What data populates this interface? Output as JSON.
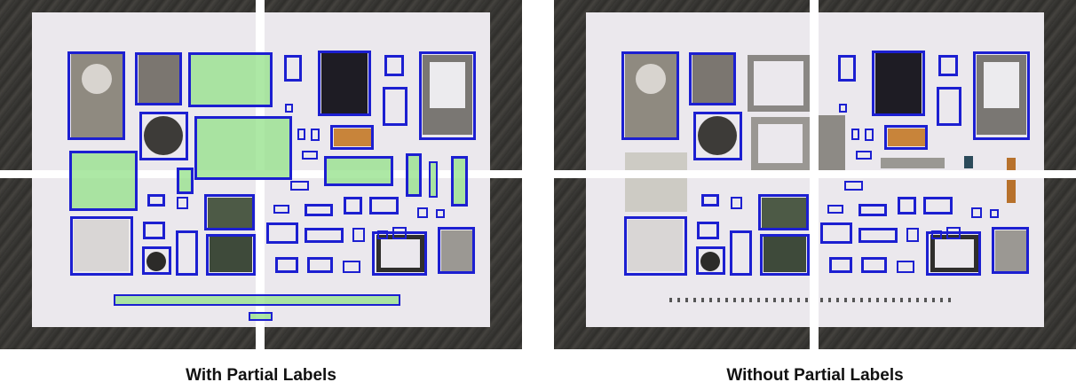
{
  "captions": {
    "left": "With Partial Labels",
    "right": "Without Partial Labels"
  },
  "colors": {
    "box_border": "#1c1fd1",
    "partial_label_fill": "#96e18c",
    "paper": "#ebe8ed",
    "table_wood": "#3b3a37"
  },
  "panels": [
    {
      "id": "with-partial-labels",
      "partial_labels_shown": true
    },
    {
      "id": "without-partial-labels",
      "partial_labels_shown": false
    }
  ]
}
